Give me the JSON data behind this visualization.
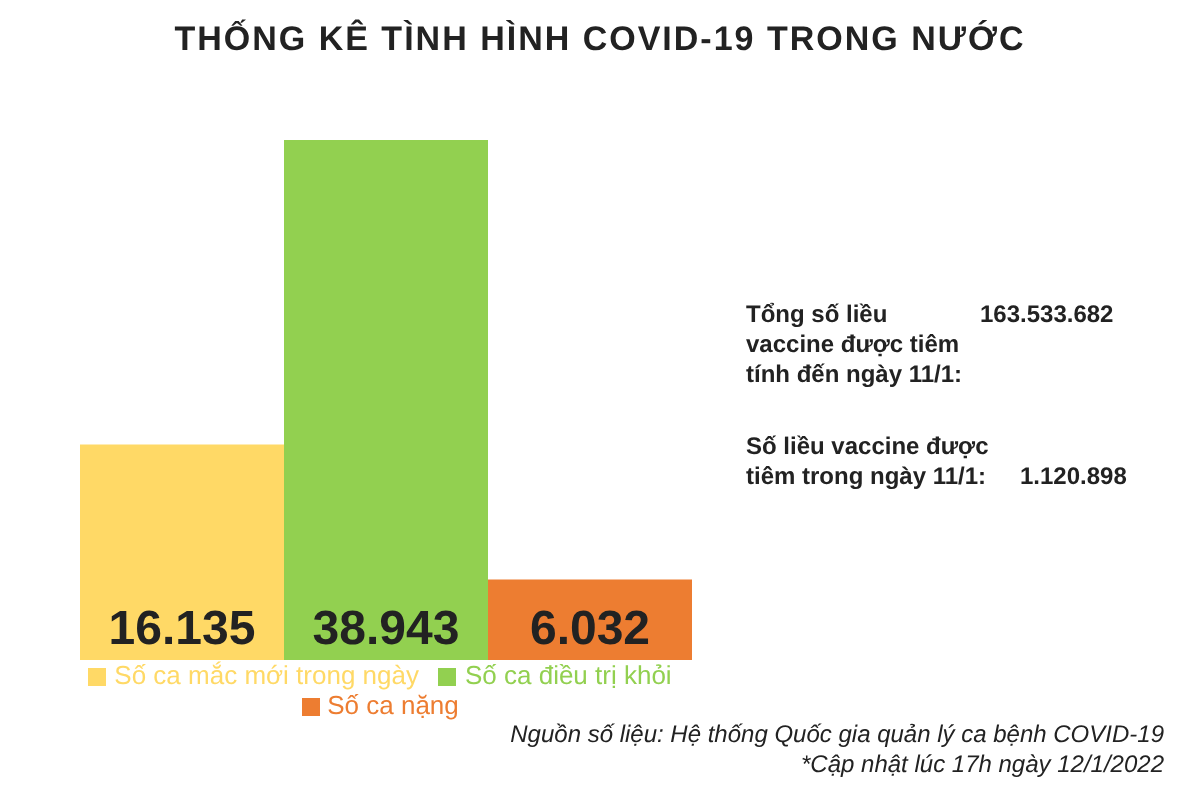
{
  "chart_data": {
    "type": "bar",
    "title": "THỐNG KÊ TÌNH HÌNH COVID-19 TRONG NƯỚC",
    "categories": [
      null
    ],
    "series": [
      {
        "name": "Số ca mắc mới trong ngày",
        "color": "#ffd966",
        "values": [
          16135
        ],
        "value_labels": [
          "16.135"
        ]
      },
      {
        "name": "Số ca điều trị khỏi",
        "color": "#92d050",
        "values": [
          38943
        ],
        "value_labels": [
          "38.943"
        ]
      },
      {
        "name": "Số ca nặng",
        "color": "#ed7d31",
        "values": [
          6032
        ],
        "value_labels": [
          "6.032"
        ]
      }
    ],
    "legend": "bottom",
    "grid": false,
    "annotations": [
      "Tổng số liều vaccine được tiêm tính đến ngày 11/1:",
      "163.533.682",
      "Số liều vaccine được tiêm trong ngày 11/1:",
      "1.120.898",
      "Nguồn số liệu: Hệ thống Quốc gia quản lý ca bệnh COVID-19",
      "*Cập nhật lúc 17h ngày 12/1/2022"
    ]
  }
}
